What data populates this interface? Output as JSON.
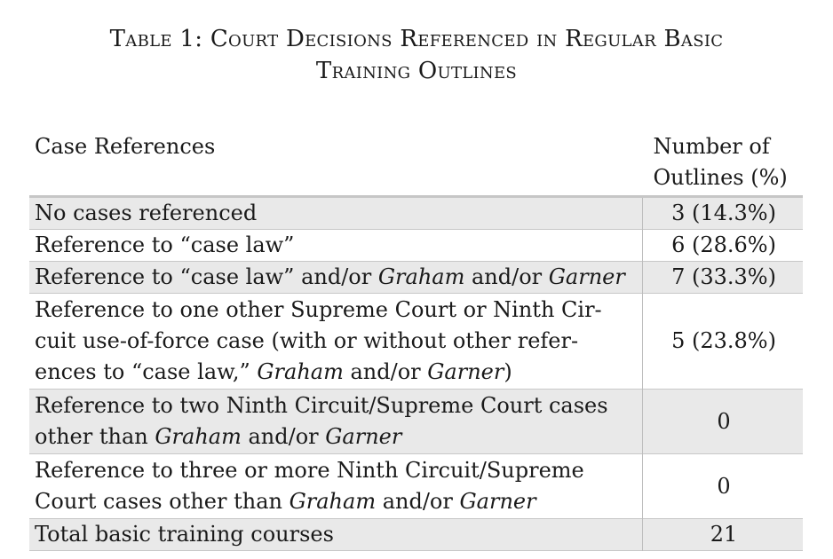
{
  "title": {
    "line1": "Table 1: Court Decisions Referenced in Regular Basic",
    "line2": "Training Outlines"
  },
  "table": {
    "header_case": "Case References",
    "header_num_line1": "Number of",
    "header_num_line2": "Outlines (%)",
    "rows": [
      {
        "lines": [
          [
            {
              "t": "No cases referenced",
              "i": false
            }
          ]
        ],
        "value": "3 (14.3%)",
        "shaded": true
      },
      {
        "lines": [
          [
            {
              "t": "Reference to “case law”",
              "i": false
            }
          ]
        ],
        "value": "6 (28.6%)",
        "shaded": false
      },
      {
        "lines": [
          [
            {
              "t": "Reference to “case law” and/or ",
              "i": false
            },
            {
              "t": "Graham",
              "i": true
            },
            {
              "t": " and/or ",
              "i": false
            },
            {
              "t": "Garner",
              "i": true
            }
          ]
        ],
        "value": "7 (33.3%)",
        "shaded": true
      },
      {
        "lines": [
          [
            {
              "t": "Reference to one other Supreme Court or Ninth Cir-",
              "i": false
            }
          ],
          [
            {
              "t": "cuit use-of-force case (with or without other refer-",
              "i": false
            }
          ],
          [
            {
              "t": "ences to “case law,” ",
              "i": false
            },
            {
              "t": "Graham",
              "i": true
            },
            {
              "t": " and/or ",
              "i": false
            },
            {
              "t": "Garner",
              "i": true
            },
            {
              "t": ")",
              "i": false
            }
          ]
        ],
        "value": "5 (23.8%)",
        "shaded": false
      },
      {
        "lines": [
          [
            {
              "t": "Reference to two Ninth Circuit/Supreme Court cases",
              "i": false
            }
          ],
          [
            {
              "t": "other than ",
              "i": false
            },
            {
              "t": "Graham",
              "i": true
            },
            {
              "t": " and/or ",
              "i": false
            },
            {
              "t": "Garner",
              "i": true
            }
          ]
        ],
        "value": "0",
        "shaded": true
      },
      {
        "lines": [
          [
            {
              "t": "Reference to three or more Ninth Circuit/Supreme",
              "i": false
            }
          ],
          [
            {
              "t": "Court cases other than ",
              "i": false
            },
            {
              "t": "Graham",
              "i": true
            },
            {
              "t": " and/or ",
              "i": false
            },
            {
              "t": "Garner",
              "i": true
            }
          ]
        ],
        "value": "0",
        "shaded": false
      },
      {
        "lines": [
          [
            {
              "t": "Total basic training courses",
              "i": false
            }
          ]
        ],
        "value": "21",
        "shaded": true
      }
    ]
  }
}
